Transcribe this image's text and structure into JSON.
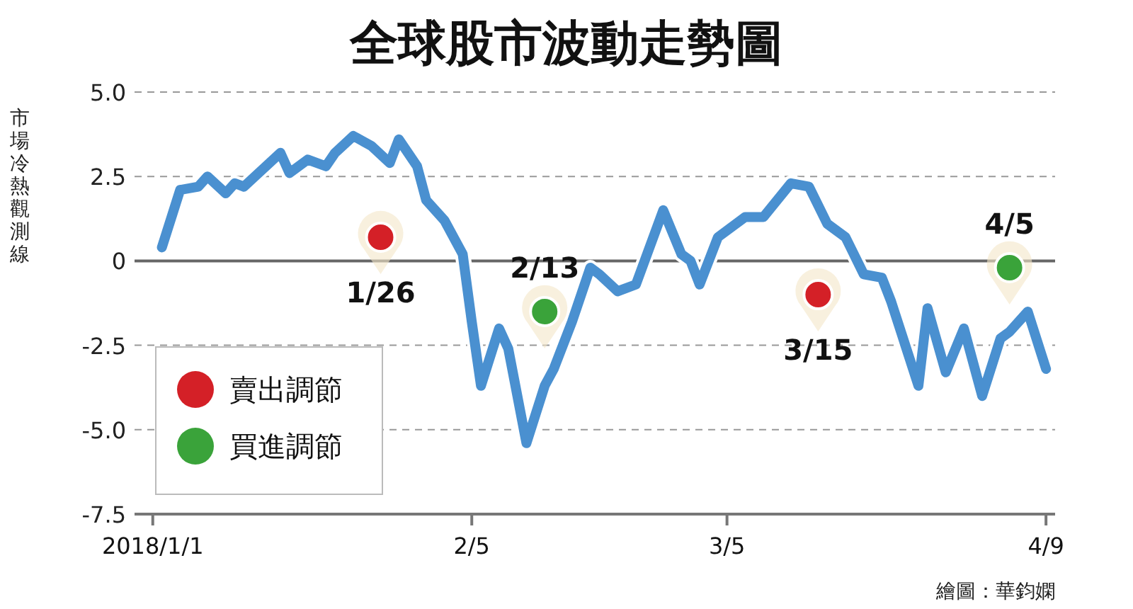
{
  "chart_data": {
    "type": "line",
    "title": "全球股市波動走勢圖",
    "ylabel": "市場冷熱觀測線",
    "xlim": [
      "2017-12-30",
      "2018-04-10"
    ],
    "xticks": [
      {
        "value": "2018-01-01",
        "label": "2018/1/1"
      },
      {
        "value": "2018-02-05",
        "label": "2/5"
      },
      {
        "value": "2018-03-05",
        "label": "3/5"
      },
      {
        "value": "2018-04-09",
        "label": "4/9"
      }
    ],
    "ylim": [
      -7.5,
      5
    ],
    "yticks": [
      {
        "value": 5,
        "label": "5.0"
      },
      2.5,
      0,
      -2.5,
      {
        "value": -5,
        "label": "-5.0"
      },
      -7.5
    ],
    "grid": "y",
    "legend": "bottom left",
    "ref_lines": [
      {
        "axis": "y",
        "value": 0,
        "color": "#666666"
      }
    ],
    "series": [
      {
        "color": "#4a90d0",
        "x": [
          "2018-01-02",
          "2018-01-04",
          "2018-01-06",
          "2018-01-07",
          "2018-01-09",
          "2018-01-10",
          "2018-01-11",
          "2018-01-15",
          "2018-01-16",
          "2018-01-18",
          "2018-01-20",
          "2018-01-21",
          "2018-01-23",
          "2018-01-25",
          "2018-01-27",
          "2018-01-28",
          "2018-01-30",
          "2018-01-31",
          "2018-02-02",
          "2018-02-04",
          "2018-02-05",
          "2018-02-06",
          "2018-02-08",
          "2018-02-09",
          "2018-02-11",
          "2018-02-13",
          "2018-02-14",
          "2018-02-16",
          "2018-02-18",
          "2018-02-19",
          "2018-02-21",
          "2018-02-23",
          "2018-02-26",
          "2018-02-28",
          "2018-03-01",
          "2018-03-02",
          "2018-03-04",
          "2018-03-07",
          "2018-03-09",
          "2018-03-12",
          "2018-03-14",
          "2018-03-16",
          "2018-03-18",
          "2018-03-20",
          "2018-03-22",
          "2018-03-23",
          "2018-03-26",
          "2018-03-27",
          "2018-03-29",
          "2018-03-31",
          "2018-04-02",
          "2018-04-04",
          "2018-04-05",
          "2018-04-07",
          "2018-04-09"
        ],
        "values": [
          0.4,
          2.1,
          2.2,
          2.5,
          2.0,
          2.3,
          2.2,
          3.2,
          2.6,
          3.0,
          2.8,
          3.2,
          3.7,
          3.4,
          2.9,
          3.6,
          2.8,
          1.8,
          1.2,
          0.2,
          -1.8,
          -3.7,
          -2.0,
          -2.6,
          -5.4,
          -3.7,
          -3.2,
          -1.8,
          -0.2,
          -0.4,
          -0.9,
          -0.7,
          1.5,
          0.2,
          0.0,
          -0.7,
          0.7,
          1.3,
          1.3,
          2.3,
          2.2,
          1.1,
          0.7,
          -0.4,
          -0.5,
          -1.2,
          -3.7,
          -1.4,
          -3.3,
          -2.0,
          -4.0,
          -2.3,
          -2.1,
          -1.5,
          -3.2
        ]
      },
      {
        "type": "scatter",
        "name": "賣出調節",
        "color": "#d42027",
        "x": [
          "2018-01-26",
          "2018-03-15"
        ],
        "values": [
          0.7,
          -1.0
        ]
      },
      {
        "type": "scatter",
        "name": "買進調節",
        "color": "#3aa33a",
        "x": [
          "2018-02-13",
          "2018-04-05"
        ],
        "values": [
          -1.5,
          -0.2
        ]
      }
    ],
    "annotations": [
      {
        "text": "1/26",
        "x": "2018-01-26",
        "y": 0.7
      },
      {
        "text": "2/13",
        "x": "2018-02-13",
        "y": -1.5
      },
      {
        "text": "3/15",
        "x": "2018-03-15",
        "y": -1.0
      },
      {
        "text": "4/5",
        "x": "2018-04-05",
        "y": -0.2
      },
      "繪圖：華鈞嫻"
    ]
  }
}
